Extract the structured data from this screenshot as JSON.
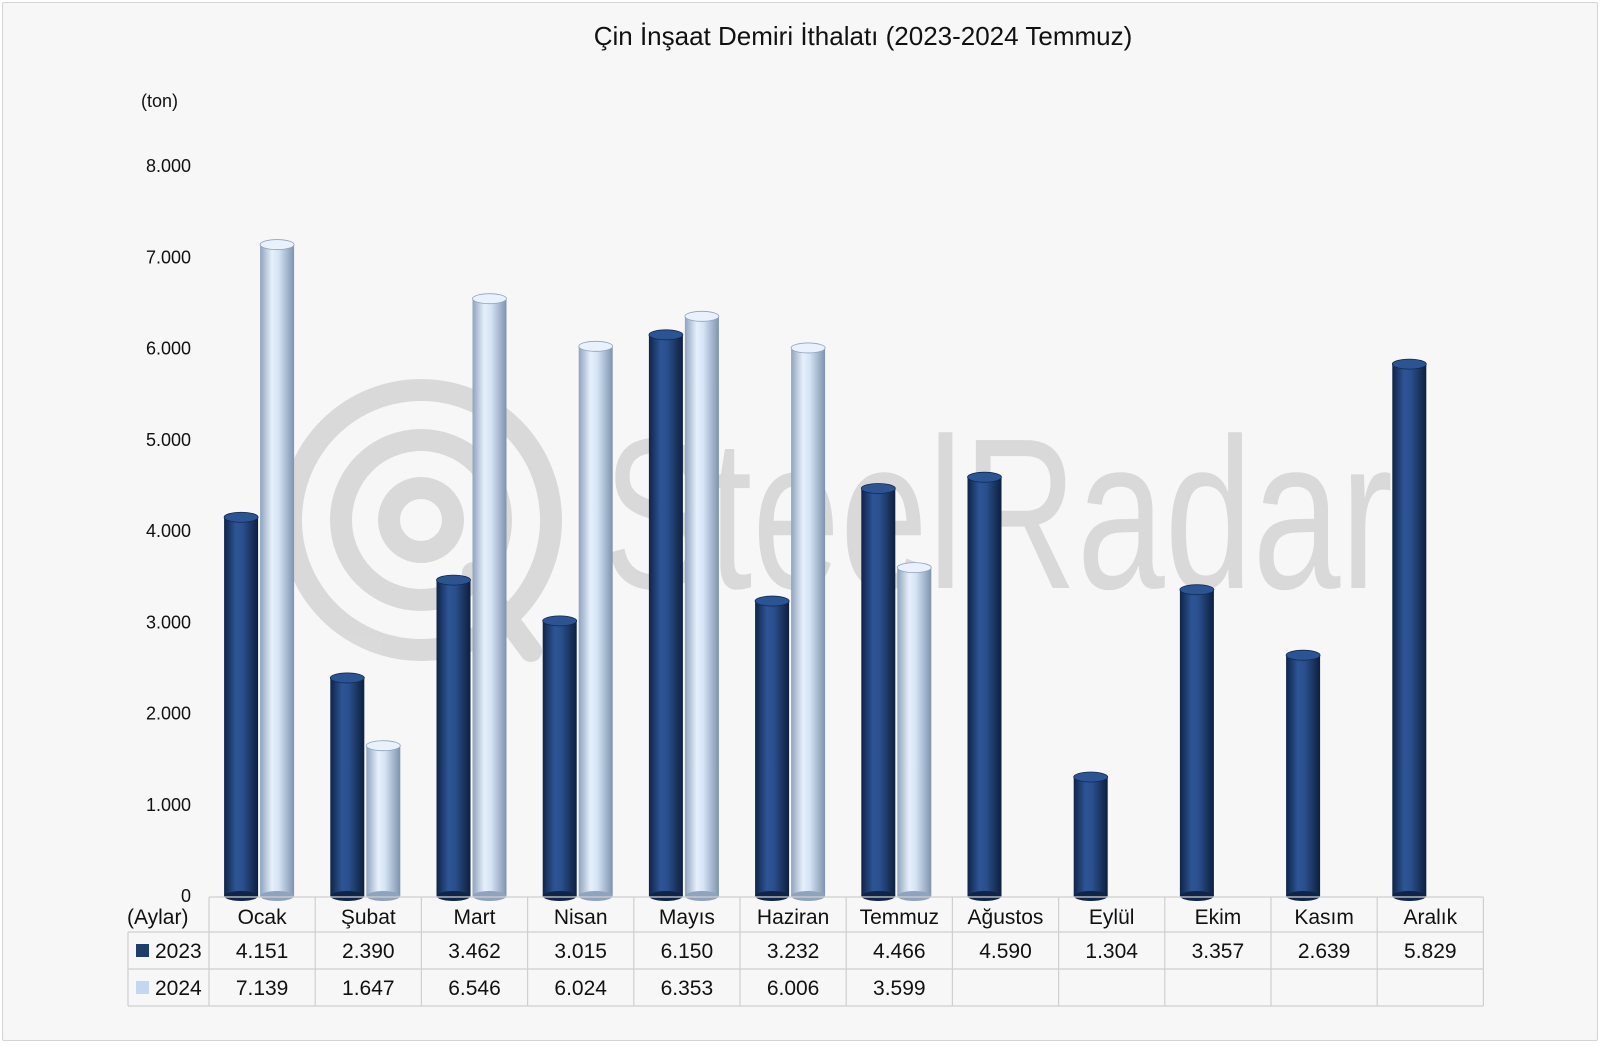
{
  "chart_data": {
    "type": "bar",
    "title": "Çin İnşaat Demiri İthalatı (2023-2024 Temmuz)",
    "ylabel": "(ton)",
    "xlabel": "(Aylar)",
    "watermark": "SteelRadar",
    "ylim": [
      0,
      8000
    ],
    "yticks": [
      "0",
      "1.000",
      "2.000",
      "3.000",
      "4.000",
      "5.000",
      "6.000",
      "7.000",
      "8.000"
    ],
    "categories": [
      "Ocak",
      "Şubat",
      "Mart",
      "Nisan",
      "Mayıs",
      "Haziran",
      "Temmuz",
      "Ağustos",
      "Eylül",
      "Ekim",
      "Kasım",
      "Aralık"
    ],
    "series": [
      {
        "name": "2023",
        "color": "#1f3e6e",
        "values": [
          4151,
          2390,
          3462,
          3015,
          6150,
          3232,
          4466,
          4590,
          1304,
          3357,
          2639,
          5829
        ],
        "labels": [
          "4.151",
          "2.390",
          "3.462",
          "3.015",
          "6.150",
          "3.232",
          "4.466",
          "4.590",
          "1.304",
          "3.357",
          "2.639",
          "5.829"
        ]
      },
      {
        "name": "2024",
        "color": "#c5d7ee",
        "values": [
          7139,
          1647,
          6546,
          6024,
          6353,
          6006,
          3599,
          null,
          null,
          null,
          null,
          null
        ],
        "labels": [
          "7.139",
          "1.647",
          "6.546",
          "6.024",
          "6.353",
          "6.006",
          "3.599",
          "",
          "",
          "",
          "",
          ""
        ]
      }
    ],
    "grid": false,
    "legend": "data-table"
  }
}
